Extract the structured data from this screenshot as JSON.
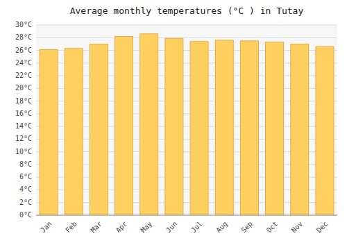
{
  "chart_data": {
    "type": "bar",
    "title": "Average monthly temperatures (°C ) in Tutay",
    "categories": [
      "Jan",
      "Feb",
      "Mar",
      "Apr",
      "May",
      "Jun",
      "Jul",
      "Aug",
      "Sep",
      "Oct",
      "Nov",
      "Dec"
    ],
    "values": [
      26.1,
      26.3,
      27.0,
      28.2,
      28.6,
      27.9,
      27.4,
      27.6,
      27.5,
      27.3,
      27.0,
      26.6
    ],
    "color": "#FFD060",
    "ylim": [
      0,
      30
    ],
    "yticks": [
      {
        "value": 0,
        "label": "0°C"
      },
      {
        "value": 2,
        "label": "2°C"
      },
      {
        "value": 4,
        "label": "4°C"
      },
      {
        "value": 6,
        "label": "6°C"
      },
      {
        "value": 8,
        "label": "8°C"
      },
      {
        "value": 10,
        "label": "10°C"
      },
      {
        "value": 12,
        "label": "12°C"
      },
      {
        "value": 14,
        "label": "14°C"
      },
      {
        "value": 16,
        "label": "16°C"
      },
      {
        "value": 18,
        "label": "18°C"
      },
      {
        "value": 20,
        "label": "20°C"
      },
      {
        "value": 22,
        "label": "22°C"
      },
      {
        "value": 24,
        "label": "24°C"
      },
      {
        "value": 26,
        "label": "26°C"
      },
      {
        "value": 28,
        "label": "28°C"
      },
      {
        "value": 30,
        "label": "30°C"
      }
    ],
    "grid": true
  }
}
